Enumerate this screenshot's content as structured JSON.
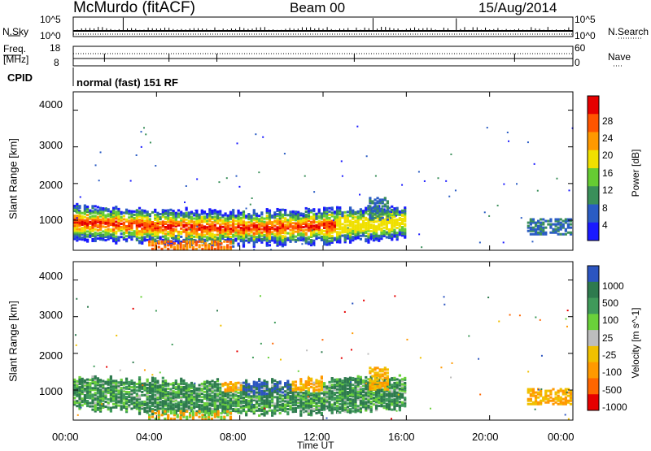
{
  "header": {
    "site": "McMurdo (fitACF)",
    "beam": "Beam 00",
    "date": "15/Aug/2014"
  },
  "noise_panel": {
    "left_label": "N.Sky",
    "right_label": "N.Search",
    "left_ticks": [
      "10^5",
      "10^0"
    ],
    "right_ticks": [
      "10^5",
      "10^0"
    ]
  },
  "freq_panel": {
    "left_label_1": "Freq.",
    "left_label_2": "[MHz]",
    "right_label": "Nave",
    "left_ticks": [
      "18",
      "8"
    ],
    "right_ticks": [
      "60",
      "0"
    ]
  },
  "cpid": {
    "label": "CPID",
    "value": "normal (fast) 151 RF"
  },
  "chart_data": [
    {
      "type": "heatmap",
      "name": "power",
      "ylabel": "Slant Range [km]",
      "ylim": [
        180,
        4500
      ],
      "y_ticks": [
        "1000",
        "2000",
        "3000",
        "4000"
      ],
      "y_tick_values": [
        1000,
        2000,
        3000,
        4000
      ],
      "colorbar_label": "Power [dB]",
      "colorbar_ticks": [
        "4",
        "8",
        "12",
        "16",
        "20",
        "24",
        "28"
      ],
      "colorbar_range": [
        0,
        32
      ],
      "colors": [
        "#1a1aff",
        "#2a5cc4",
        "#3a8f5a",
        "#66cc33",
        "#f0e000",
        "#ff9900",
        "#ff5500",
        "#e60000"
      ]
    },
    {
      "type": "heatmap",
      "name": "velocity",
      "ylabel": "Slant Range [km]",
      "ylim": [
        180,
        4500
      ],
      "y_ticks": [
        "1000",
        "2000",
        "3000",
        "4000"
      ],
      "y_tick_values": [
        1000,
        2000,
        3000,
        4000
      ],
      "colorbar_label": "Velocity [m s^-1]",
      "colorbar_ticks": [
        "1000",
        "500",
        "100",
        "25",
        "-25",
        "-100",
        "-500",
        "-1000"
      ],
      "colors": [
        "#2c55c0",
        "#2e7a4e",
        "#3f9a5a",
        "#6ad13a",
        "#bdbdbd",
        "#f0c000",
        "#ff9900",
        "#ff6600",
        "#e60000"
      ]
    }
  ],
  "x_axis": {
    "label": "Time UT",
    "ticks": [
      "00:00",
      "04:00",
      "08:00",
      "12:00",
      "16:00",
      "20:00",
      "00:00"
    ],
    "xlim_hours": [
      0,
      24
    ]
  },
  "theme": {
    "axis": "#000000"
  }
}
